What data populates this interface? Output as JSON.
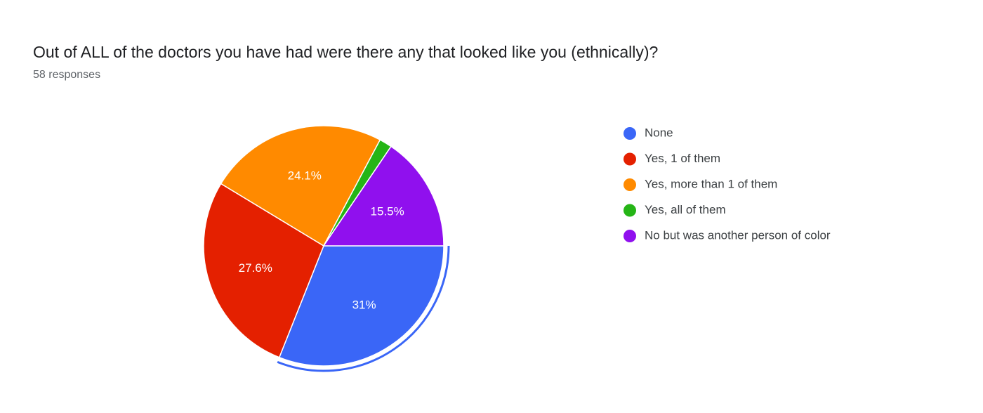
{
  "chart_data": {
    "type": "pie",
    "title": "Out of ALL of the doctors you have had were there any that looked like you (ethnically)?",
    "subtitle": "58 responses",
    "categories": [
      "None",
      "Yes, 1 of them",
      "Yes, more than 1 of them",
      "Yes, all of them",
      "No but was another person of color"
    ],
    "values": [
      31,
      27.6,
      24.1,
      1.7,
      15.5
    ],
    "value_labels": [
      "31%",
      "27.6%",
      "24.1%",
      null,
      "15.5%"
    ],
    "colors": [
      "#3a66f7",
      "#e42000",
      "#ff8a00",
      "#25b516",
      "#9010ee"
    ]
  }
}
